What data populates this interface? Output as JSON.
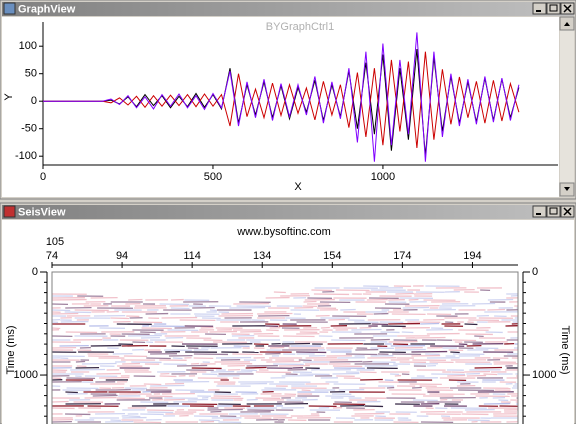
{
  "windows": [
    {
      "title": "GraphView",
      "chart_data": {
        "type": "line",
        "title": "BYGraphCtrl1",
        "x_label": "X",
        "y_label": "Y",
        "xlim": [
          0,
          1515
        ],
        "ylim": [
          -116,
          144
        ],
        "xticks": [
          0,
          500,
          1000
        ],
        "yticks": [
          -100,
          -50,
          0,
          50,
          100
        ],
        "x": [
          0,
          25,
          50,
          75,
          100,
          125,
          150,
          175,
          200,
          225,
          250,
          275,
          300,
          325,
          350,
          375,
          400,
          425,
          450,
          475,
          500,
          525,
          550,
          575,
          600,
          625,
          650,
          675,
          700,
          725,
          750,
          775,
          800,
          825,
          850,
          875,
          900,
          925,
          950,
          975,
          1000,
          1025,
          1050,
          1075,
          1100,
          1125,
          1150,
          1175,
          1200,
          1225,
          1250,
          1275,
          1300,
          1325,
          1350,
          1375,
          1400
        ],
        "series": [
          {
            "color": "#000000",
            "values": [
              0,
              0,
              0,
              0,
              0,
              0,
              0,
              0,
              2,
              -5,
              8,
              -10,
              12,
              -8,
              10,
              -12,
              9,
              -10,
              14,
              -11,
              12,
              -14,
              60,
              -40,
              30,
              -25,
              35,
              -30,
              28,
              -32,
              25,
              -20,
              38,
              -35,
              30,
              -28,
              55,
              -50,
              70,
              -60,
              85,
              -90,
              60,
              -70,
              95,
              -100,
              80,
              -55,
              45,
              -40,
              35,
              -38,
              42,
              -35,
              40,
              -30,
              25
            ]
          },
          {
            "color": "#cc0000",
            "values": [
              0,
              0,
              0,
              0,
              0,
              0,
              0,
              0,
              -3,
              6,
              -7,
              9,
              -11,
              10,
              -9,
              11,
              -8,
              12,
              -10,
              13,
              -9,
              12,
              -45,
              50,
              -28,
              22,
              -30,
              33,
              -26,
              30,
              -22,
              24,
              -34,
              36,
              -25,
              30,
              -48,
              52,
              -65,
              60,
              -80,
              75,
              -55,
              72,
              -85,
              90,
              -70,
              58,
              -42,
              44,
              -30,
              36,
              -40,
              38,
              -36,
              32,
              -20
            ]
          },
          {
            "color": "#8000ff",
            "values": [
              0,
              0,
              0,
              0,
              0,
              0,
              0,
              0,
              4,
              -6,
              10,
              -12,
              8,
              -14,
              12,
              -9,
              13,
              -12,
              10,
              -15,
              14,
              -12,
              55,
              -45,
              35,
              -30,
              40,
              -35,
              32,
              -28,
              30,
              -25,
              45,
              -40,
              35,
              -32,
              60,
              -75,
              90,
              -110,
              105,
              -80,
              75,
              -60,
              125,
              -110,
              90,
              -65,
              50,
              -45,
              40,
              -42,
              45,
              -38,
              42,
              -35,
              30
            ]
          }
        ]
      }
    },
    {
      "title": "SeisView",
      "chart_data": {
        "type": "seismic_section",
        "title": "www.bysoftinc.com",
        "trace_label": "105",
        "y_label": "Time (ms)",
        "y_inverted": true,
        "xlim": [
          74,
          207
        ],
        "ylim": [
          0,
          1475
        ],
        "xticks": [
          74,
          94,
          114,
          134,
          154,
          174,
          194
        ],
        "yticks": [
          0,
          1000
        ]
      }
    }
  ]
}
